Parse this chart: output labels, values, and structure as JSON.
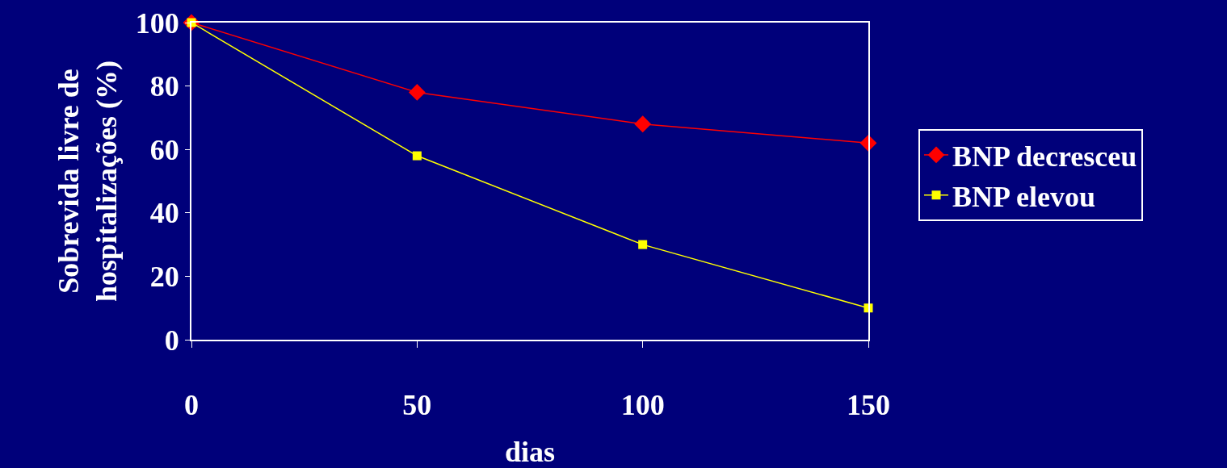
{
  "chart_data": {
    "type": "line",
    "xlabel": "dias",
    "ylabel": "Sobrevida livre de\nhospitalizações (%)",
    "x": [
      0,
      50,
      100,
      150
    ],
    "series": [
      {
        "name": "BNP decresceu",
        "color": "#ff0000",
        "marker": "diamond",
        "values": [
          100,
          78,
          68,
          62
        ]
      },
      {
        "name": "BNP elevou",
        "color": "#ffff00",
        "marker": "square",
        "values": [
          100,
          58,
          30,
          10
        ]
      }
    ],
    "xlim": [
      0,
      150
    ],
    "xticks": [
      0,
      50,
      100,
      150
    ],
    "ylim": [
      0,
      100
    ],
    "yticks": [
      0,
      20,
      40,
      60,
      80,
      100
    ],
    "grid": false,
    "legend": "right",
    "line_style": "solid"
  }
}
